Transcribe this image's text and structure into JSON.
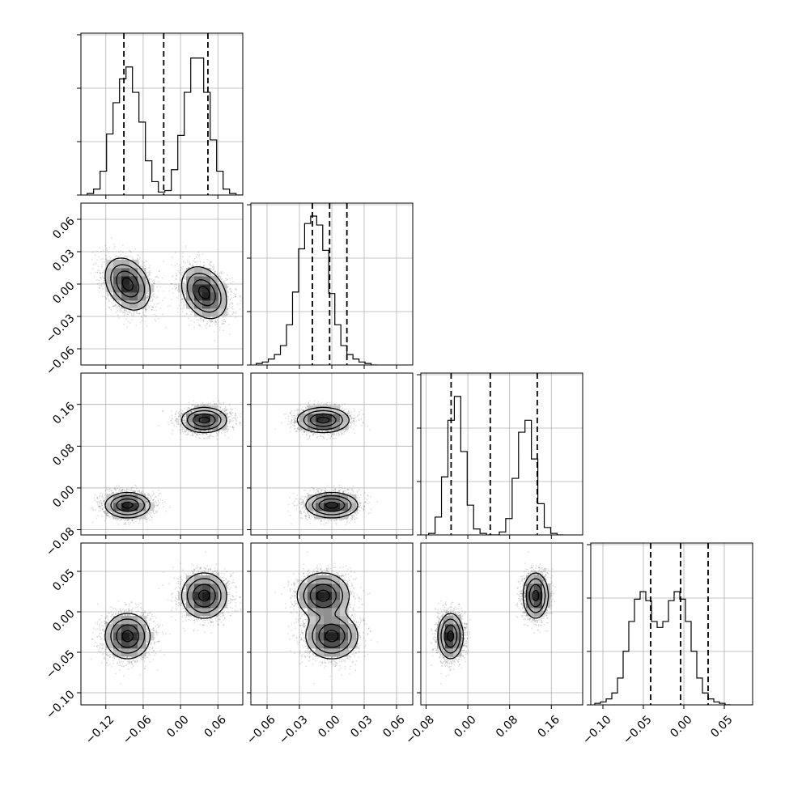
{
  "chart_data": {
    "type": "corner",
    "grid": true,
    "parameters": [
      {
        "range": [
          -0.16,
          0.1
        ],
        "ticks": [
          -0.12,
          -0.06,
          0.0,
          0.06
        ],
        "tick_labels": [
          "−0.12",
          "−0.06",
          "0.00",
          "0.06"
        ],
        "quantiles": [
          -0.091,
          -0.027,
          0.044
        ],
        "components": [
          {
            "mean": -0.085,
            "sd": 0.018,
            "weight": 0.5
          },
          {
            "mean": 0.038,
            "sd": 0.018,
            "weight": 0.5
          }
        ],
        "hist": {
          "edges_from": -0.15,
          "bin_width": 0.0104,
          "counts": [
            0.01,
            0.04,
            0.16,
            0.41,
            0.62,
            0.78,
            0.86,
            0.69,
            0.49,
            0.23,
            0.09,
            0.02,
            0.03,
            0.17,
            0.4,
            0.69,
            0.92,
            0.92,
            0.69,
            0.37,
            0.16,
            0.04,
            0.01,
            0.0
          ]
        }
      },
      {
        "range": [
          -0.075,
          0.075
        ],
        "ticks": [
          -0.06,
          -0.03,
          0.0,
          0.03,
          0.06
        ],
        "tick_labels": [
          "−0.06",
          "−0.03",
          "0.00",
          "0.03",
          "0.06"
        ],
        "quantiles": [
          -0.018,
          -0.002,
          0.014
        ],
        "components": [
          {
            "mean": -0.002,
            "sd": 0.012,
            "weight": 1.0
          }
        ],
        "hist": {
          "edges_from": -0.07,
          "bin_width": 0.0056,
          "counts": [
            0.01,
            0.02,
            0.04,
            0.07,
            0.13,
            0.27,
            0.49,
            0.78,
            0.95,
            1.0,
            0.94,
            0.77,
            0.48,
            0.27,
            0.13,
            0.07,
            0.04,
            0.02,
            0.01,
            0.0
          ]
        }
      },
      {
        "range": [
          -0.09,
          0.22
        ],
        "ticks": [
          -0.08,
          0.0,
          0.08,
          0.16
        ],
        "tick_labels": [
          "−0.08",
          "0.00",
          "0.08",
          "0.16"
        ],
        "quantiles": [
          -0.032,
          0.043,
          0.133
        ],
        "components": [
          {
            "mean": -0.033,
            "sd": 0.012,
            "weight": 0.5
          },
          {
            "mean": 0.13,
            "sd": 0.012,
            "weight": 0.5
          }
        ],
        "hist": {
          "edges_from": -0.075,
          "bin_width": 0.0123,
          "counts": [
            0.01,
            0.12,
            0.39,
            0.77,
            0.93,
            0.56,
            0.2,
            0.04,
            0.01,
            0.0,
            0.0,
            0.02,
            0.11,
            0.38,
            0.69,
            0.77,
            0.51,
            0.21,
            0.05,
            0.01,
            0.0
          ]
        }
      },
      {
        "range": [
          -0.115,
          0.085
        ],
        "ticks": [
          -0.1,
          -0.05,
          0.0,
          0.05
        ],
        "tick_labels": [
          "−0.10",
          "−0.05",
          "0.00",
          "0.05"
        ],
        "quantiles": [
          -0.041,
          -0.004,
          0.03
        ],
        "components": [
          {
            "mean": -0.03,
            "sd": 0.014,
            "weight": 0.5
          },
          {
            "mean": 0.02,
            "sd": 0.014,
            "weight": 0.5
          }
        ],
        "hist": {
          "edges_from": -0.11,
          "bin_width": 0.007,
          "counts": [
            0.01,
            0.02,
            0.04,
            0.08,
            0.18,
            0.36,
            0.56,
            0.71,
            0.76,
            0.7,
            0.56,
            0.52,
            0.56,
            0.7,
            0.76,
            0.71,
            0.56,
            0.36,
            0.18,
            0.08,
            0.04,
            0.02,
            0.01,
            0.0
          ]
        }
      }
    ],
    "clusters": [
      {
        "weight": 0.25,
        "mean": [
          -0.085,
          0.0,
          -0.033,
          -0.03
        ],
        "sd": [
          0.018,
          0.012,
          0.012,
          0.014
        ]
      },
      {
        "weight": 0.25,
        "mean": [
          -0.085,
          0.0,
          -0.033,
          -0.03
        ],
        "sd": [
          0.018,
          0.012,
          0.012,
          0.014
        ]
      },
      {
        "weight": 0.25,
        "mean": [
          0.038,
          -0.008,
          0.13,
          0.02
        ],
        "sd": [
          0.018,
          0.012,
          0.012,
          0.014
        ]
      },
      {
        "weight": 0.25,
        "mean": [
          0.038,
          -0.008,
          0.13,
          0.02
        ],
        "sd": [
          0.018,
          0.012,
          0.012,
          0.014
        ]
      }
    ],
    "pair_correlation": {
      "0-1": -0.3,
      "0-2": 0.0,
      "0-3": 0.0,
      "1-2": 0.0,
      "1-3": 0.0,
      "2-3": 0.0
    },
    "contour_levels_sigma": [
      0.5,
      1.0,
      1.5,
      2.0
    ]
  }
}
